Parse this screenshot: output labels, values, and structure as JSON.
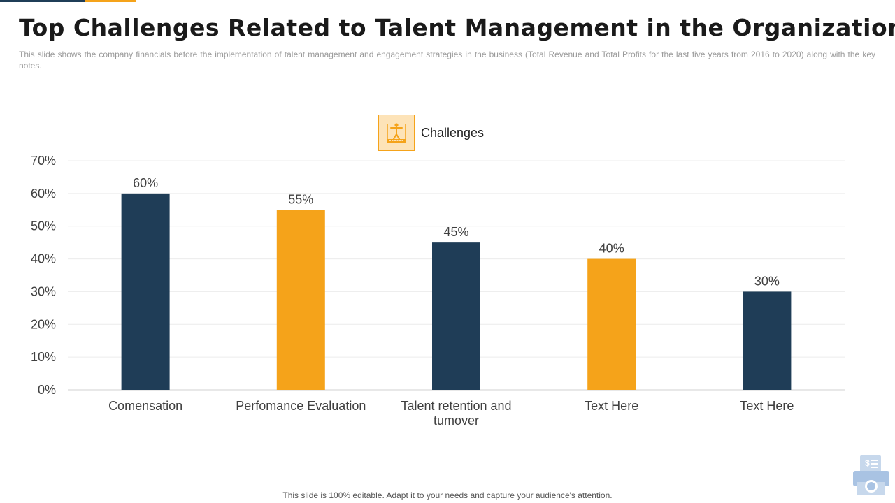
{
  "title": "Top Challenges Related to Talent Management in the Organization",
  "subtitle": "This slide shows the company financials before the implementation of talent management and engagement strategies in the business (Total Revenue and Total Profits for the last five years from 2016 to 2020) along with the key notes.",
  "footer": "This slide is 100% editable. Adapt it to your needs and capture your audience's attention.",
  "colors": {
    "dark": "#1f3d57",
    "orange": "#f5a31a"
  },
  "icons": {
    "legend": "person-podium-icon",
    "corner": "finance-logo-icon"
  },
  "chart_data": {
    "type": "bar",
    "title": "",
    "legend": "Challenges",
    "legend_position": "top-center",
    "categories": [
      [
        "Comensation"
      ],
      [
        "Perfomance Evaluation"
      ],
      [
        "Talent retention and",
        "tumover"
      ],
      [
        "Text Here"
      ],
      [
        "Text Here"
      ]
    ],
    "values": [
      60,
      55,
      45,
      40,
      30
    ],
    "value_labels": [
      "60%",
      "55%",
      "45%",
      "40%",
      "30%"
    ],
    "bar_colors": [
      "#1f3d57",
      "#f5a31a",
      "#1f3d57",
      "#f5a31a",
      "#1f3d57"
    ],
    "ylim": [
      0,
      70
    ],
    "yticks": [
      0,
      10,
      20,
      30,
      40,
      50,
      60,
      70
    ],
    "ytick_labels": [
      "0%",
      "10%",
      "20%",
      "30%",
      "40%",
      "50%",
      "60%",
      "70%"
    ],
    "xlabel": "",
    "ylabel": "",
    "grid": true
  }
}
